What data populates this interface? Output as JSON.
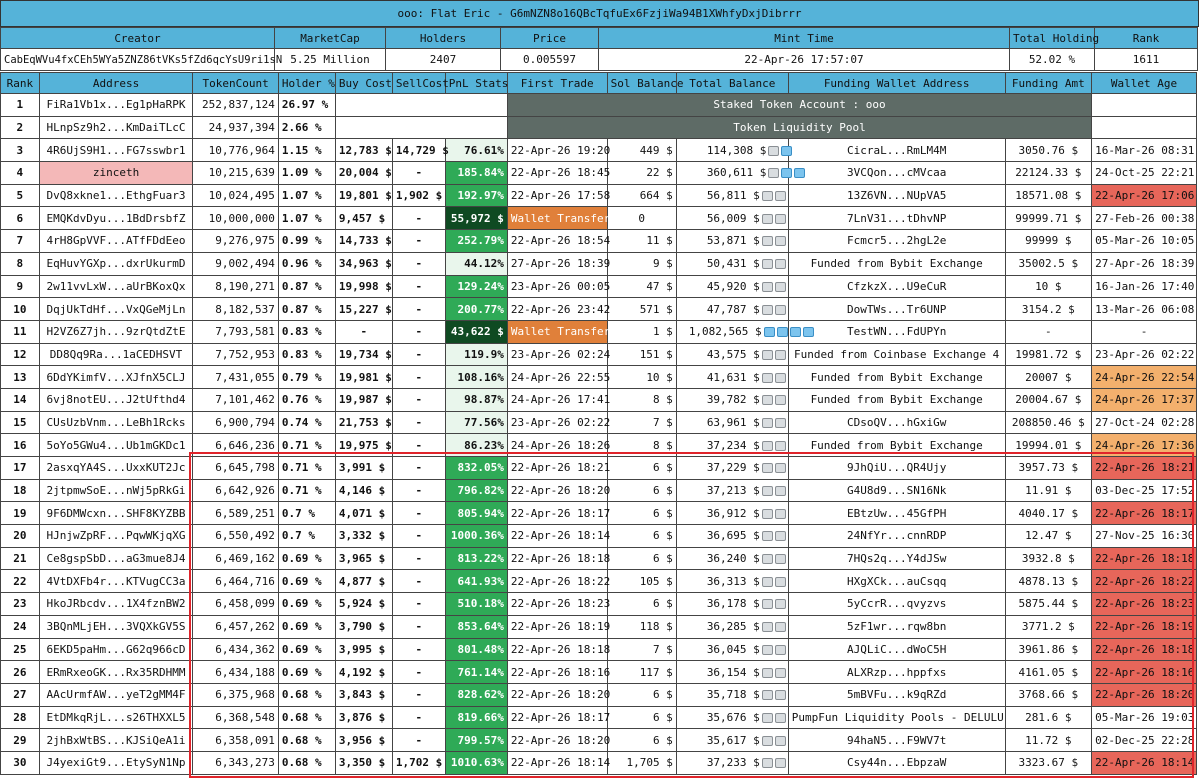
{
  "title": "ooo: Flat Eric - G6mNZN8o16QBcTqfuEx6FzjiWa94B1XWhfyDxjDibrrr",
  "meta": {
    "headers": [
      "Creator",
      "MarketCap",
      "Holders",
      "Price",
      "Mint Time",
      "Total Holding",
      "Rank"
    ],
    "values": [
      "CabEqWVu4fxCEh5WYa5ZNZ86tVKs5fZd6qcYsU9ri1sN",
      "5.25 Million",
      "2407",
      "0.005597",
      "22-Apr-26 17:57:07",
      "52.02 %",
      "1611"
    ]
  },
  "columns": [
    "Rank",
    "Address",
    "TokenCount",
    "Holder %",
    "Buy Cost",
    "SellCost",
    "PnL Stats",
    "First Trade",
    "Sol Balance",
    "Total Balance",
    "Funding Wallet Address",
    "Funding Amt",
    "Wallet Age"
  ],
  "merged_labels": {
    "staked": "Staked Token Account : ooo",
    "liquidity": "Token Liquidity Pool"
  },
  "special_rows": [
    {
      "rank": "1",
      "address": "FiRa1Vb1x...Eg1pHaRPK",
      "tokens": "252,837,124",
      "holder": "26.97 %"
    },
    {
      "rank": "2",
      "address": "HLnpSz9h2...KmDaiTLcC",
      "tokens": "24,937,394",
      "holder": "2.66 %"
    }
  ],
  "rows": [
    {
      "rank": "3",
      "address": "4R6UjS9H1...FG7sswbr1",
      "tokens": "10,776,964",
      "holder": "1.15 %",
      "buy": "12,783 $",
      "sell": "14,729 $",
      "pnl": "76.61%",
      "pnl_level": "light",
      "first": "22-Apr-26 19:20",
      "sol": "449 $",
      "total": "114,308 $",
      "icons": "gb",
      "funding": "CicraL...RmLM4M",
      "amt": "3050.76 $",
      "age": "16-Mar-26 08:31",
      "age_level": "none"
    },
    {
      "rank": "4",
      "address": "zinceth",
      "tokens": "10,215,639",
      "holder": "1.09 %",
      "buy": "20,004 $",
      "sell": "-",
      "pnl": "185.84%",
      "pnl_level": "mid",
      "first": "22-Apr-26 18:45",
      "sol": "22 $",
      "total": "360,611 $",
      "icons": "gbb",
      "funding": "3VCQon...cMVcaa",
      "amt": "22124.33 $",
      "age": "24-Oct-25 22:21",
      "age_level": "none"
    },
    {
      "rank": "5",
      "address": "DvQ8xkne1...EthgFuar3",
      "tokens": "10,024,495",
      "holder": "1.07 %",
      "buy": "19,801 $",
      "sell": "1,902 $",
      "pnl": "192.97%",
      "pnl_level": "mid",
      "first": "22-Apr-26 17:58",
      "sol": "664 $",
      "total": "56,811 $",
      "icons": "gg",
      "funding": "13Z6VN...NUpVA5",
      "amt": "18571.08 $",
      "age": "22-Apr-26 17:06",
      "age_level": "red"
    },
    {
      "rank": "6",
      "address": "EMQKdvDyu...1BdDrsbfZ",
      "tokens": "10,000,000",
      "holder": "1.07 %",
      "buy": "9,457 $",
      "sell": "-",
      "pnl": "55,972 $",
      "pnl_level": "deep",
      "first": "Wallet Transfer",
      "sol": "0",
      "total": "56,009 $",
      "icons": "gg",
      "funding": "7LnV31...tDhvNP",
      "amt": "99999.71 $",
      "age": "27-Feb-26 00:38",
      "age_level": "none"
    },
    {
      "rank": "7",
      "address": "4rH8GpVVF...ATfFDdEeo",
      "tokens": "9,276,975",
      "holder": "0.99 %",
      "buy": "14,733 $",
      "sell": "-",
      "pnl": "252.79%",
      "pnl_level": "mid",
      "first": "22-Apr-26 18:54",
      "sol": "11 $",
      "total": "53,871 $",
      "icons": "gg",
      "funding": "Fcmcr5...2hgL2e",
      "amt": "99999 $",
      "age": "05-Mar-26 10:05",
      "age_level": "none"
    },
    {
      "rank": "8",
      "address": "EqHuvYGXp...dxrUkurmD",
      "tokens": "9,002,494",
      "holder": "0.96 %",
      "buy": "34,963 $",
      "sell": "-",
      "pnl": "44.12%",
      "pnl_level": "light",
      "first": "27-Apr-26 18:39",
      "sol": "9 $",
      "total": "50,431 $",
      "icons": "gg",
      "funding": "Funded from Bybit Exchange",
      "amt": "35002.5 $",
      "age": "27-Apr-26 18:39",
      "age_level": "none"
    },
    {
      "rank": "9",
      "address": "2w11vvLxW...aUrBKoxQx",
      "tokens": "8,190,271",
      "holder": "0.87 %",
      "buy": "19,998 $",
      "sell": "-",
      "pnl": "129.24%",
      "pnl_level": "mid",
      "first": "23-Apr-26 00:05",
      "sol": "47 $",
      "total": "45,920 $",
      "icons": "gg",
      "funding": "CfzkzX...U9eCuR",
      "amt": "10 $",
      "age": "16-Jan-26 17:40",
      "age_level": "none"
    },
    {
      "rank": "10",
      "address": "DqjUkTdHf...VxQGeMjLn",
      "tokens": "8,182,537",
      "holder": "0.87 %",
      "buy": "15,227 $",
      "sell": "-",
      "pnl": "200.77%",
      "pnl_level": "mid",
      "first": "22-Apr-26 23:42",
      "sol": "571 $",
      "total": "47,787 $",
      "icons": "gg",
      "funding": "DowTWs...Tr6UNP",
      "amt": "3154.2 $",
      "age": "13-Mar-26 06:08",
      "age_level": "none"
    },
    {
      "rank": "11",
      "address": "H2VZ6Z7jh...9zrQtdZtE",
      "tokens": "7,793,581",
      "holder": "0.83 %",
      "buy": "-",
      "sell": "-",
      "pnl": "43,622 $",
      "pnl_level": "deep",
      "first": "Wallet Transfer",
      "sol": "1 $",
      "total": "1,082,565 $",
      "icons": "bbbb",
      "funding": "TestWN...FdUPYn",
      "amt": "-",
      "age": "-",
      "age_level": "none"
    },
    {
      "rank": "12",
      "address": "DD8Qq9Ra...1aCEDHSVT",
      "tokens": "7,752,953",
      "holder": "0.83 %",
      "buy": "19,734 $",
      "sell": "-",
      "pnl": "119.9%",
      "pnl_level": "light",
      "first": "23-Apr-26 02:24",
      "sol": "151 $",
      "total": "43,575 $",
      "icons": "gg",
      "funding": "Funded from Coinbase Exchange 4",
      "amt": "19981.72 $",
      "age": "23-Apr-26 02:22",
      "age_level": "none"
    },
    {
      "rank": "13",
      "address": "6DdYKimfV...XJfnX5CLJ",
      "tokens": "7,431,055",
      "holder": "0.79 %",
      "buy": "19,981 $",
      "sell": "-",
      "pnl": "108.16%",
      "pnl_level": "light",
      "first": "24-Apr-26 22:55",
      "sol": "10 $",
      "total": "41,631 $",
      "icons": "gg",
      "funding": "Funded from Bybit Exchange",
      "amt": "20007 $",
      "age": "24-Apr-26 22:54",
      "age_level": "orange"
    },
    {
      "rank": "14",
      "address": "6vj8notEU...J2tUfthd4",
      "tokens": "7,101,462",
      "holder": "0.76 %",
      "buy": "19,987 $",
      "sell": "-",
      "pnl": "98.87%",
      "pnl_level": "light",
      "first": "24-Apr-26 17:41",
      "sol": "8 $",
      "total": "39,782 $",
      "icons": "gg",
      "funding": "Funded from Bybit Exchange",
      "amt": "20004.67 $",
      "age": "24-Apr-26 17:37",
      "age_level": "orange"
    },
    {
      "rank": "15",
      "address": "CUsUzbVnm...LeBh1Rcks",
      "tokens": "6,900,794",
      "holder": "0.74 %",
      "buy": "21,753 $",
      "sell": "-",
      "pnl": "77.56%",
      "pnl_level": "light",
      "first": "23-Apr-26 02:22",
      "sol": "7 $",
      "total": "63,961 $",
      "icons": "gg",
      "funding": "CDsoQV...hGxiGw",
      "amt": "208850.46 $",
      "age": "27-Oct-24 02:28",
      "age_level": "none"
    },
    {
      "rank": "16",
      "address": "5oYo5GWu4...Ub1mGKDc1",
      "tokens": "6,646,236",
      "holder": "0.71 %",
      "buy": "19,975 $",
      "sell": "-",
      "pnl": "86.23%",
      "pnl_level": "light",
      "first": "24-Apr-26 18:26",
      "sol": "8 $",
      "total": "37,234 $",
      "icons": "gg",
      "funding": "Funded from Bybit Exchange",
      "amt": "19994.01 $",
      "age": "24-Apr-26 17:36",
      "age_level": "orange"
    },
    {
      "rank": "17",
      "address": "2asxqYA4S...UxxKUT2Jc",
      "tokens": "6,645,798",
      "holder": "0.71 %",
      "buy": "3,991 $",
      "sell": "-",
      "pnl": "832.05%",
      "pnl_level": "mid",
      "first": "22-Apr-26 18:21",
      "sol": "6 $",
      "total": "37,229 $",
      "icons": "gg",
      "funding": "9JhQiU...QR4Ujy",
      "amt": "3957.73 $",
      "age": "22-Apr-26 18:21",
      "age_level": "red"
    },
    {
      "rank": "18",
      "address": "2jtpmwSoE...nWj5pRkGi",
      "tokens": "6,642,926",
      "holder": "0.71 %",
      "buy": "4,146 $",
      "sell": "-",
      "pnl": "796.82%",
      "pnl_level": "mid",
      "first": "22-Apr-26 18:20",
      "sol": "6 $",
      "total": "37,213 $",
      "icons": "gg",
      "funding": "G4U8d9...SN16Nk",
      "amt": "11.91 $",
      "age": "03-Dec-25 17:52",
      "age_level": "none"
    },
    {
      "rank": "19",
      "address": "9F6DMWcxn...SHF8KYZBB",
      "tokens": "6,589,251",
      "holder": "0.7 %",
      "buy": "4,071 $",
      "sell": "-",
      "pnl": "805.94%",
      "pnl_level": "mid",
      "first": "22-Apr-26 18:17",
      "sol": "6 $",
      "total": "36,912 $",
      "icons": "gg",
      "funding": "EBtzUw...45GfPH",
      "amt": "4040.17 $",
      "age": "22-Apr-26 18:17",
      "age_level": "red"
    },
    {
      "rank": "20",
      "address": "HJnjwZpRF...PqwWKjqXG",
      "tokens": "6,550,492",
      "holder": "0.7 %",
      "buy": "3,332 $",
      "sell": "-",
      "pnl": "1000.36%",
      "pnl_level": "mid",
      "first": "22-Apr-26 18:14",
      "sol": "6 $",
      "total": "36,695 $",
      "icons": "gg",
      "funding": "24NfYr...cnnRDP",
      "amt": "12.47 $",
      "age": "27-Nov-25 16:30",
      "age_level": "none"
    },
    {
      "rank": "21",
      "address": "Ce8gspSbD...aG3mue8J4",
      "tokens": "6,469,162",
      "holder": "0.69 %",
      "buy": "3,965 $",
      "sell": "-",
      "pnl": "813.22%",
      "pnl_level": "mid",
      "first": "22-Apr-26 18:18",
      "sol": "6 $",
      "total": "36,240 $",
      "icons": "gg",
      "funding": "7HQs2q...Y4dJSw",
      "amt": "3932.8 $",
      "age": "22-Apr-26 18:18",
      "age_level": "red"
    },
    {
      "rank": "22",
      "address": "4VtDXFb4r...KTVugCC3a",
      "tokens": "6,464,716",
      "holder": "0.69 %",
      "buy": "4,877 $",
      "sell": "-",
      "pnl": "641.93%",
      "pnl_level": "mid",
      "first": "22-Apr-26 18:22",
      "sol": "105 $",
      "total": "36,313 $",
      "icons": "gg",
      "funding": "HXgXCk...auCsqq",
      "amt": "4878.13 $",
      "age": "22-Apr-26 18:22",
      "age_level": "red"
    },
    {
      "rank": "23",
      "address": "HkoJRbcdv...1X4fznBW2",
      "tokens": "6,458,099",
      "holder": "0.69 %",
      "buy": "5,924 $",
      "sell": "-",
      "pnl": "510.18%",
      "pnl_level": "mid",
      "first": "22-Apr-26 18:23",
      "sol": "6 $",
      "total": "36,178 $",
      "icons": "gg",
      "funding": "5yCcrR...qvyzvs",
      "amt": "5875.44 $",
      "age": "22-Apr-26 18:23",
      "age_level": "red"
    },
    {
      "rank": "24",
      "address": "3BQnMLjEH...3VQXkGV5S",
      "tokens": "6,457,262",
      "holder": "0.69 %",
      "buy": "3,790 $",
      "sell": "-",
      "pnl": "853.64%",
      "pnl_level": "mid",
      "first": "22-Apr-26 18:19",
      "sol": "118 $",
      "total": "36,285 $",
      "icons": "gg",
      "funding": "5zF1wr...rqw8bn",
      "amt": "3771.2 $",
      "age": "22-Apr-26 18:19",
      "age_level": "red"
    },
    {
      "rank": "25",
      "address": "6EKD5paHm...G62q966cD",
      "tokens": "6,434,362",
      "holder": "0.69 %",
      "buy": "3,995 $",
      "sell": "-",
      "pnl": "801.48%",
      "pnl_level": "mid",
      "first": "22-Apr-26 18:18",
      "sol": "7 $",
      "total": "36,045 $",
      "icons": "gg",
      "funding": "AJQLiC...dWoC5H",
      "amt": "3961.86 $",
      "age": "22-Apr-26 18:18",
      "age_level": "red"
    },
    {
      "rank": "26",
      "address": "ERmRxeoGK...Rx35RDHMM",
      "tokens": "6,434,188",
      "holder": "0.69 %",
      "buy": "4,192 $",
      "sell": "-",
      "pnl": "761.14%",
      "pnl_level": "mid",
      "first": "22-Apr-26 18:16",
      "sol": "117 $",
      "total": "36,154 $",
      "icons": "gg",
      "funding": "ALXRzp...hppfxs",
      "amt": "4161.05 $",
      "age": "22-Apr-26 18:16",
      "age_level": "red"
    },
    {
      "rank": "27",
      "address": "AAcUrmfAW...yeT2gMM4F",
      "tokens": "6,375,968",
      "holder": "0.68 %",
      "buy": "3,843 $",
      "sell": "-",
      "pnl": "828.62%",
      "pnl_level": "mid",
      "first": "22-Apr-26 18:20",
      "sol": "6 $",
      "total": "35,718 $",
      "icons": "gg",
      "funding": "5mBVFu...k9qRZd",
      "amt": "3768.66 $",
      "age": "22-Apr-26 18:20",
      "age_level": "red"
    },
    {
      "rank": "28",
      "address": "EtDMkqRjL...s26THXXL5",
      "tokens": "6,368,548",
      "holder": "0.68 %",
      "buy": "3,876 $",
      "sell": "-",
      "pnl": "819.66%",
      "pnl_level": "mid",
      "first": "22-Apr-26 18:17",
      "sol": "6 $",
      "total": "35,676 $",
      "icons": "gg",
      "funding": "PumpFun Liquidity Pools - DELULU",
      "amt": "281.6 $",
      "age": "05-Mar-26 19:03",
      "age_level": "none"
    },
    {
      "rank": "29",
      "address": "2jhBxWtBS...KJSiQeA1i",
      "tokens": "6,358,091",
      "holder": "0.68 %",
      "buy": "3,956 $",
      "sell": "-",
      "pnl": "799.57%",
      "pnl_level": "mid",
      "first": "22-Apr-26 18:20",
      "sol": "6 $",
      "total": "35,617 $",
      "icons": "gg",
      "funding": "94haN5...F9WV7t",
      "amt": "11.72 $",
      "age": "02-Dec-25 22:28",
      "age_level": "none"
    },
    {
      "rank": "30",
      "address": "J4yexiGt9...EtySyN1Np",
      "tokens": "6,343,273",
      "holder": "0.68 %",
      "buy": "3,350 $",
      "sell": "1,702 $",
      "pnl": "1010.63%",
      "pnl_level": "mid",
      "first": "22-Apr-26 18:14",
      "sol": "1,705 $",
      "total": "37,233 $",
      "icons": "gg",
      "funding": "Csy44n...EbpzaW",
      "amt": "3323.67 $",
      "age": "22-Apr-26 18:14",
      "age_level": "red"
    }
  ]
}
